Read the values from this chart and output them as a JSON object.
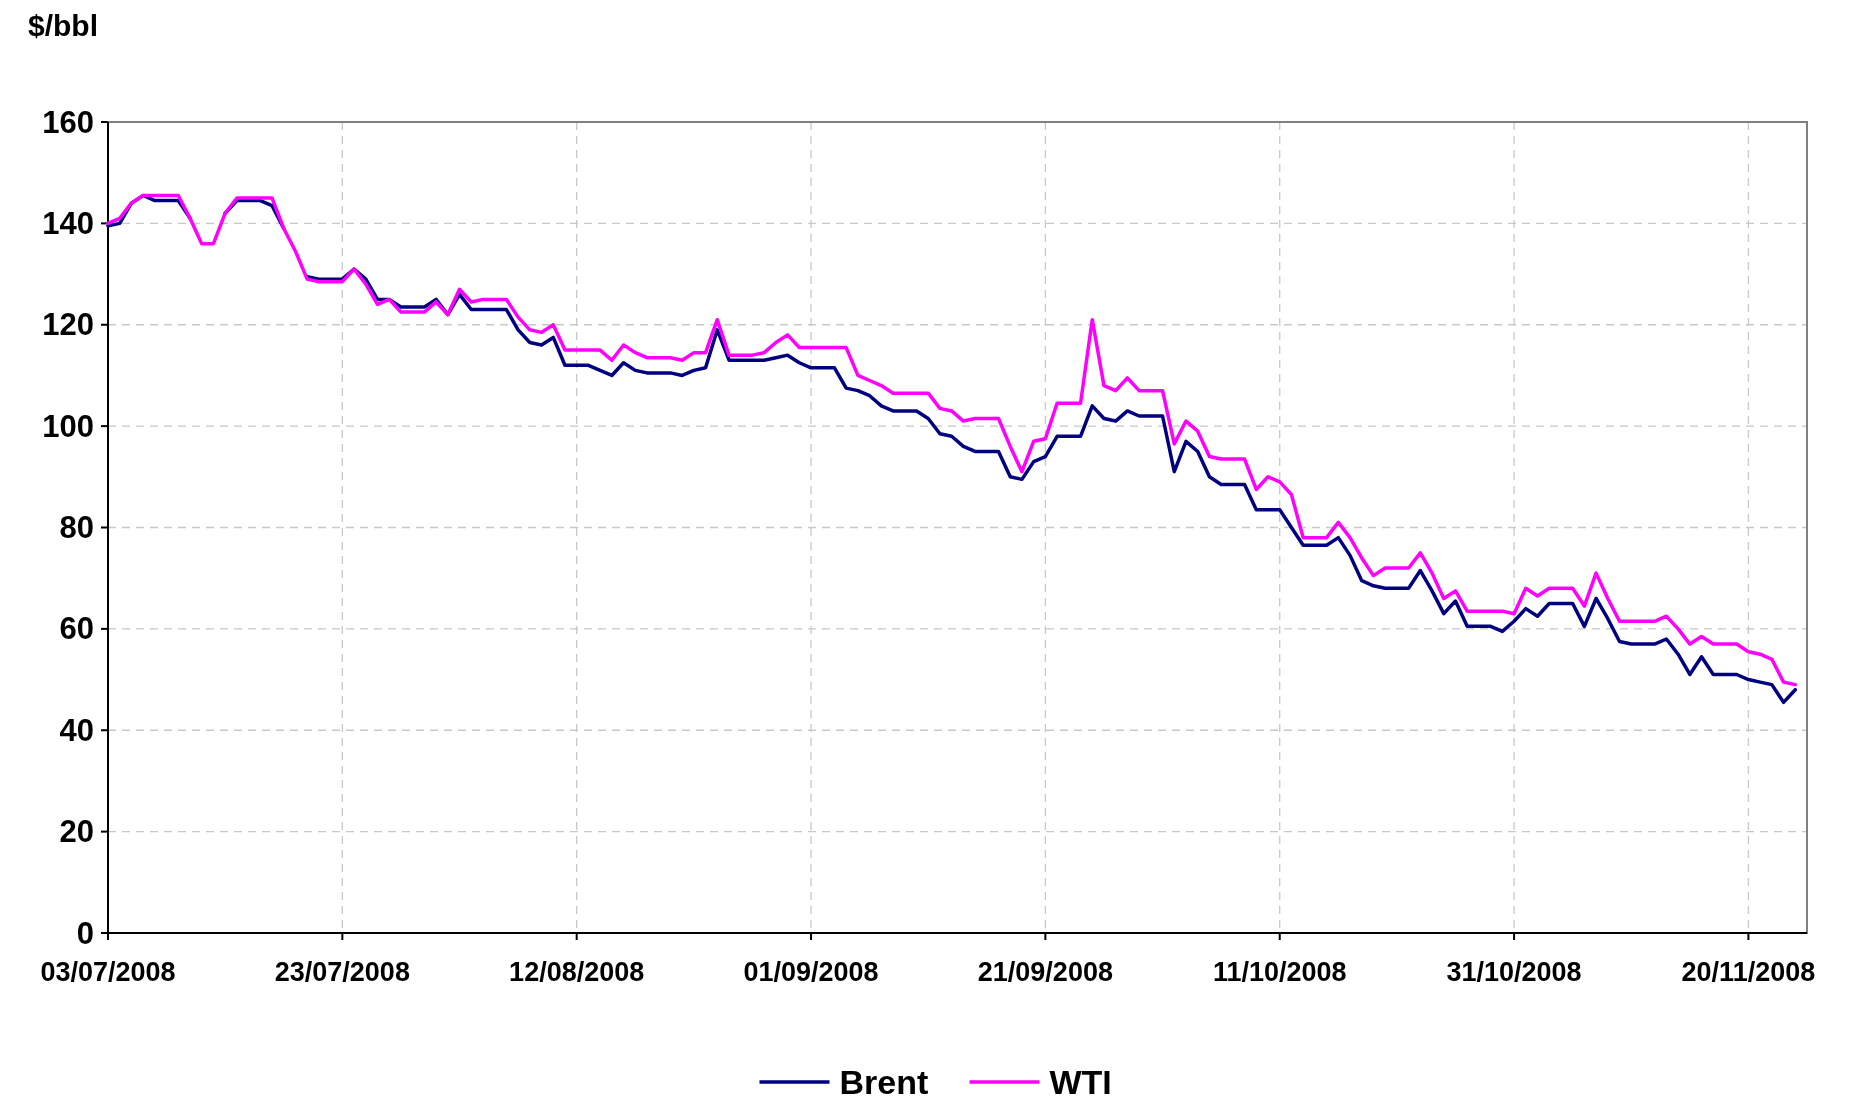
{
  "chart_data": {
    "type": "line",
    "ylabel": "$/bbl",
    "x": [
      "2008-07-03",
      "2008-07-04",
      "2008-07-05",
      "2008-07-06",
      "2008-07-07",
      "2008-07-08",
      "2008-07-09",
      "2008-07-10",
      "2008-07-11",
      "2008-07-12",
      "2008-07-13",
      "2008-07-14",
      "2008-07-15",
      "2008-07-16",
      "2008-07-17",
      "2008-07-18",
      "2008-07-19",
      "2008-07-20",
      "2008-07-21",
      "2008-07-22",
      "2008-07-23",
      "2008-07-24",
      "2008-07-25",
      "2008-07-26",
      "2008-07-27",
      "2008-07-28",
      "2008-07-29",
      "2008-07-30",
      "2008-07-31",
      "2008-08-01",
      "2008-08-02",
      "2008-08-03",
      "2008-08-04",
      "2008-08-05",
      "2008-08-06",
      "2008-08-07",
      "2008-08-08",
      "2008-08-09",
      "2008-08-10",
      "2008-08-11",
      "2008-08-12",
      "2008-08-13",
      "2008-08-14",
      "2008-08-15",
      "2008-08-16",
      "2008-08-17",
      "2008-08-18",
      "2008-08-19",
      "2008-08-20",
      "2008-08-21",
      "2008-08-22",
      "2008-08-23",
      "2008-08-24",
      "2008-08-25",
      "2008-08-26",
      "2008-08-27",
      "2008-08-28",
      "2008-08-29",
      "2008-08-30",
      "2008-08-31",
      "2008-09-01",
      "2008-09-02",
      "2008-09-03",
      "2008-09-04",
      "2008-09-05",
      "2008-09-06",
      "2008-09-07",
      "2008-09-08",
      "2008-09-09",
      "2008-09-10",
      "2008-09-11",
      "2008-09-12",
      "2008-09-13",
      "2008-09-14",
      "2008-09-15",
      "2008-09-16",
      "2008-09-17",
      "2008-09-18",
      "2008-09-19",
      "2008-09-20",
      "2008-09-21",
      "2008-09-22",
      "2008-09-23",
      "2008-09-24",
      "2008-09-25",
      "2008-09-26",
      "2008-09-27",
      "2008-09-28",
      "2008-09-29",
      "2008-09-30",
      "2008-10-01",
      "2008-10-02",
      "2008-10-03",
      "2008-10-04",
      "2008-10-05",
      "2008-10-06",
      "2008-10-07",
      "2008-10-08",
      "2008-10-09",
      "2008-10-10",
      "2008-10-11",
      "2008-10-12",
      "2008-10-13",
      "2008-10-14",
      "2008-10-15",
      "2008-10-16",
      "2008-10-17",
      "2008-10-18",
      "2008-10-19",
      "2008-10-20",
      "2008-10-21",
      "2008-10-22",
      "2008-10-23",
      "2008-10-24",
      "2008-10-25",
      "2008-10-26",
      "2008-10-27",
      "2008-10-28",
      "2008-10-29",
      "2008-10-30",
      "2008-10-31",
      "2008-11-01",
      "2008-11-02",
      "2008-11-03",
      "2008-11-04",
      "2008-11-05",
      "2008-11-06",
      "2008-11-07",
      "2008-11-08",
      "2008-11-09",
      "2008-11-10",
      "2008-11-11",
      "2008-11-12",
      "2008-11-13",
      "2008-11-14",
      "2008-11-15",
      "2008-11-16",
      "2008-11-17",
      "2008-11-18",
      "2008-11-19",
      "2008-11-20",
      "2008-11-21",
      "2008-11-22",
      "2008-11-23",
      "2008-11-24"
    ],
    "series": [
      {
        "name": "Brent",
        "color": "#000080",
        "values": [
          139.5,
          140,
          144,
          145.5,
          144.5,
          144.5,
          144.5,
          141,
          null,
          null,
          142,
          144.5,
          144.5,
          144.5,
          143.5,
          139,
          null,
          129.5,
          129,
          129,
          129,
          131,
          129,
          125,
          125,
          123.5,
          123.5,
          123.5,
          125,
          122,
          126,
          123,
          123,
          123,
          123,
          119,
          116.5,
          116,
          117.5,
          112,
          112,
          112,
          111,
          110,
          112.5,
          111,
          110.5,
          110.5,
          110.5,
          110,
          111,
          111.5,
          119,
          113,
          113,
          113,
          113,
          113.5,
          114,
          112.5,
          111.5,
          111.5,
          111.5,
          107.5,
          107,
          106,
          104,
          103,
          103,
          103,
          101.5,
          98.5,
          98,
          96,
          95,
          95,
          95,
          90,
          89.5,
          93,
          94,
          98,
          98,
          98,
          104,
          101.5,
          101,
          103,
          102,
          102,
          102,
          91,
          97,
          95,
          90,
          88.5,
          88.5,
          88.5,
          83.5,
          83.5,
          83.5,
          80,
          76.5,
          76.5,
          76.5,
          78,
          74.5,
          69.5,
          68.5,
          68,
          68,
          68,
          71.5,
          67.5,
          63,
          65.5,
          60.5,
          60.5,
          60.5,
          59.5,
          61.5,
          64,
          62.5,
          65,
          65,
          65,
          60.5,
          66,
          62,
          57.5,
          57,
          57,
          57,
          58,
          55,
          51,
          54.5,
          51,
          51,
          51,
          50,
          49.5,
          49,
          45.5,
          48
        ]
      },
      {
        "name": "WTI",
        "color": "#ff00ff",
        "values": [
          140,
          141,
          144,
          145.5,
          145.5,
          145.5,
          145.5,
          141,
          136,
          136,
          142,
          145,
          145,
          145,
          145,
          139,
          134.5,
          129,
          128.5,
          128.5,
          128.5,
          131,
          128,
          124,
          125,
          122.5,
          122.5,
          122.5,
          124.5,
          122,
          127,
          124.5,
          125,
          125,
          125,
          121.5,
          119,
          118.5,
          120,
          115,
          115,
          115,
          115,
          113,
          116,
          114.5,
          113.5,
          113.5,
          113.5,
          113,
          114.5,
          114.5,
          121,
          114,
          114,
          114,
          114.5,
          116.5,
          118,
          115.5,
          115.5,
          115.5,
          115.5,
          115.5,
          110,
          109,
          108,
          106.5,
          106.5,
          106.5,
          106.5,
          103.5,
          103,
          101,
          101.5,
          101.5,
          101.5,
          96,
          91,
          97,
          97.5,
          104.5,
          104.5,
          104.5,
          121,
          108,
          107,
          109.5,
          107,
          107,
          107,
          96.5,
          101,
          99,
          94,
          93.5,
          93.5,
          93.5,
          87.5,
          90,
          89,
          86.5,
          78,
          78,
          78,
          81,
          78,
          74,
          70.5,
          72,
          72,
          72,
          75,
          71,
          66,
          67.5,
          63.5,
          63.5,
          63.5,
          63.5,
          63,
          68,
          66.5,
          68,
          68,
          68,
          64.5,
          71,
          66,
          61.5,
          61.5,
          61.5,
          61.5,
          62.5,
          60,
          57,
          58.5,
          57,
          57,
          57,
          55.5,
          55,
          54,
          49.5,
          49
        ]
      }
    ],
    "xlim": [
      "2008-07-03",
      "2008-11-25"
    ],
    "xticks": [
      {
        "value": "2008-07-03",
        "label": "03/07/2008"
      },
      {
        "value": "2008-07-23",
        "label": "23/07/2008"
      },
      {
        "value": "2008-08-12",
        "label": "12/08/2008"
      },
      {
        "value": "2008-09-01",
        "label": "01/09/2008"
      },
      {
        "value": "2008-09-21",
        "label": "21/09/2008"
      },
      {
        "value": "2008-10-11",
        "label": "11/10/2008"
      },
      {
        "value": "2008-10-31",
        "label": "31/10/2008"
      },
      {
        "value": "2008-11-20",
        "label": "20/11/2008"
      }
    ],
    "ylim": [
      0,
      160
    ],
    "yticks": [
      0,
      20,
      40,
      60,
      80,
      100,
      120,
      140,
      160
    ],
    "grid": true,
    "legend": "bottom",
    "marker": "none",
    "line_style": "solid"
  }
}
